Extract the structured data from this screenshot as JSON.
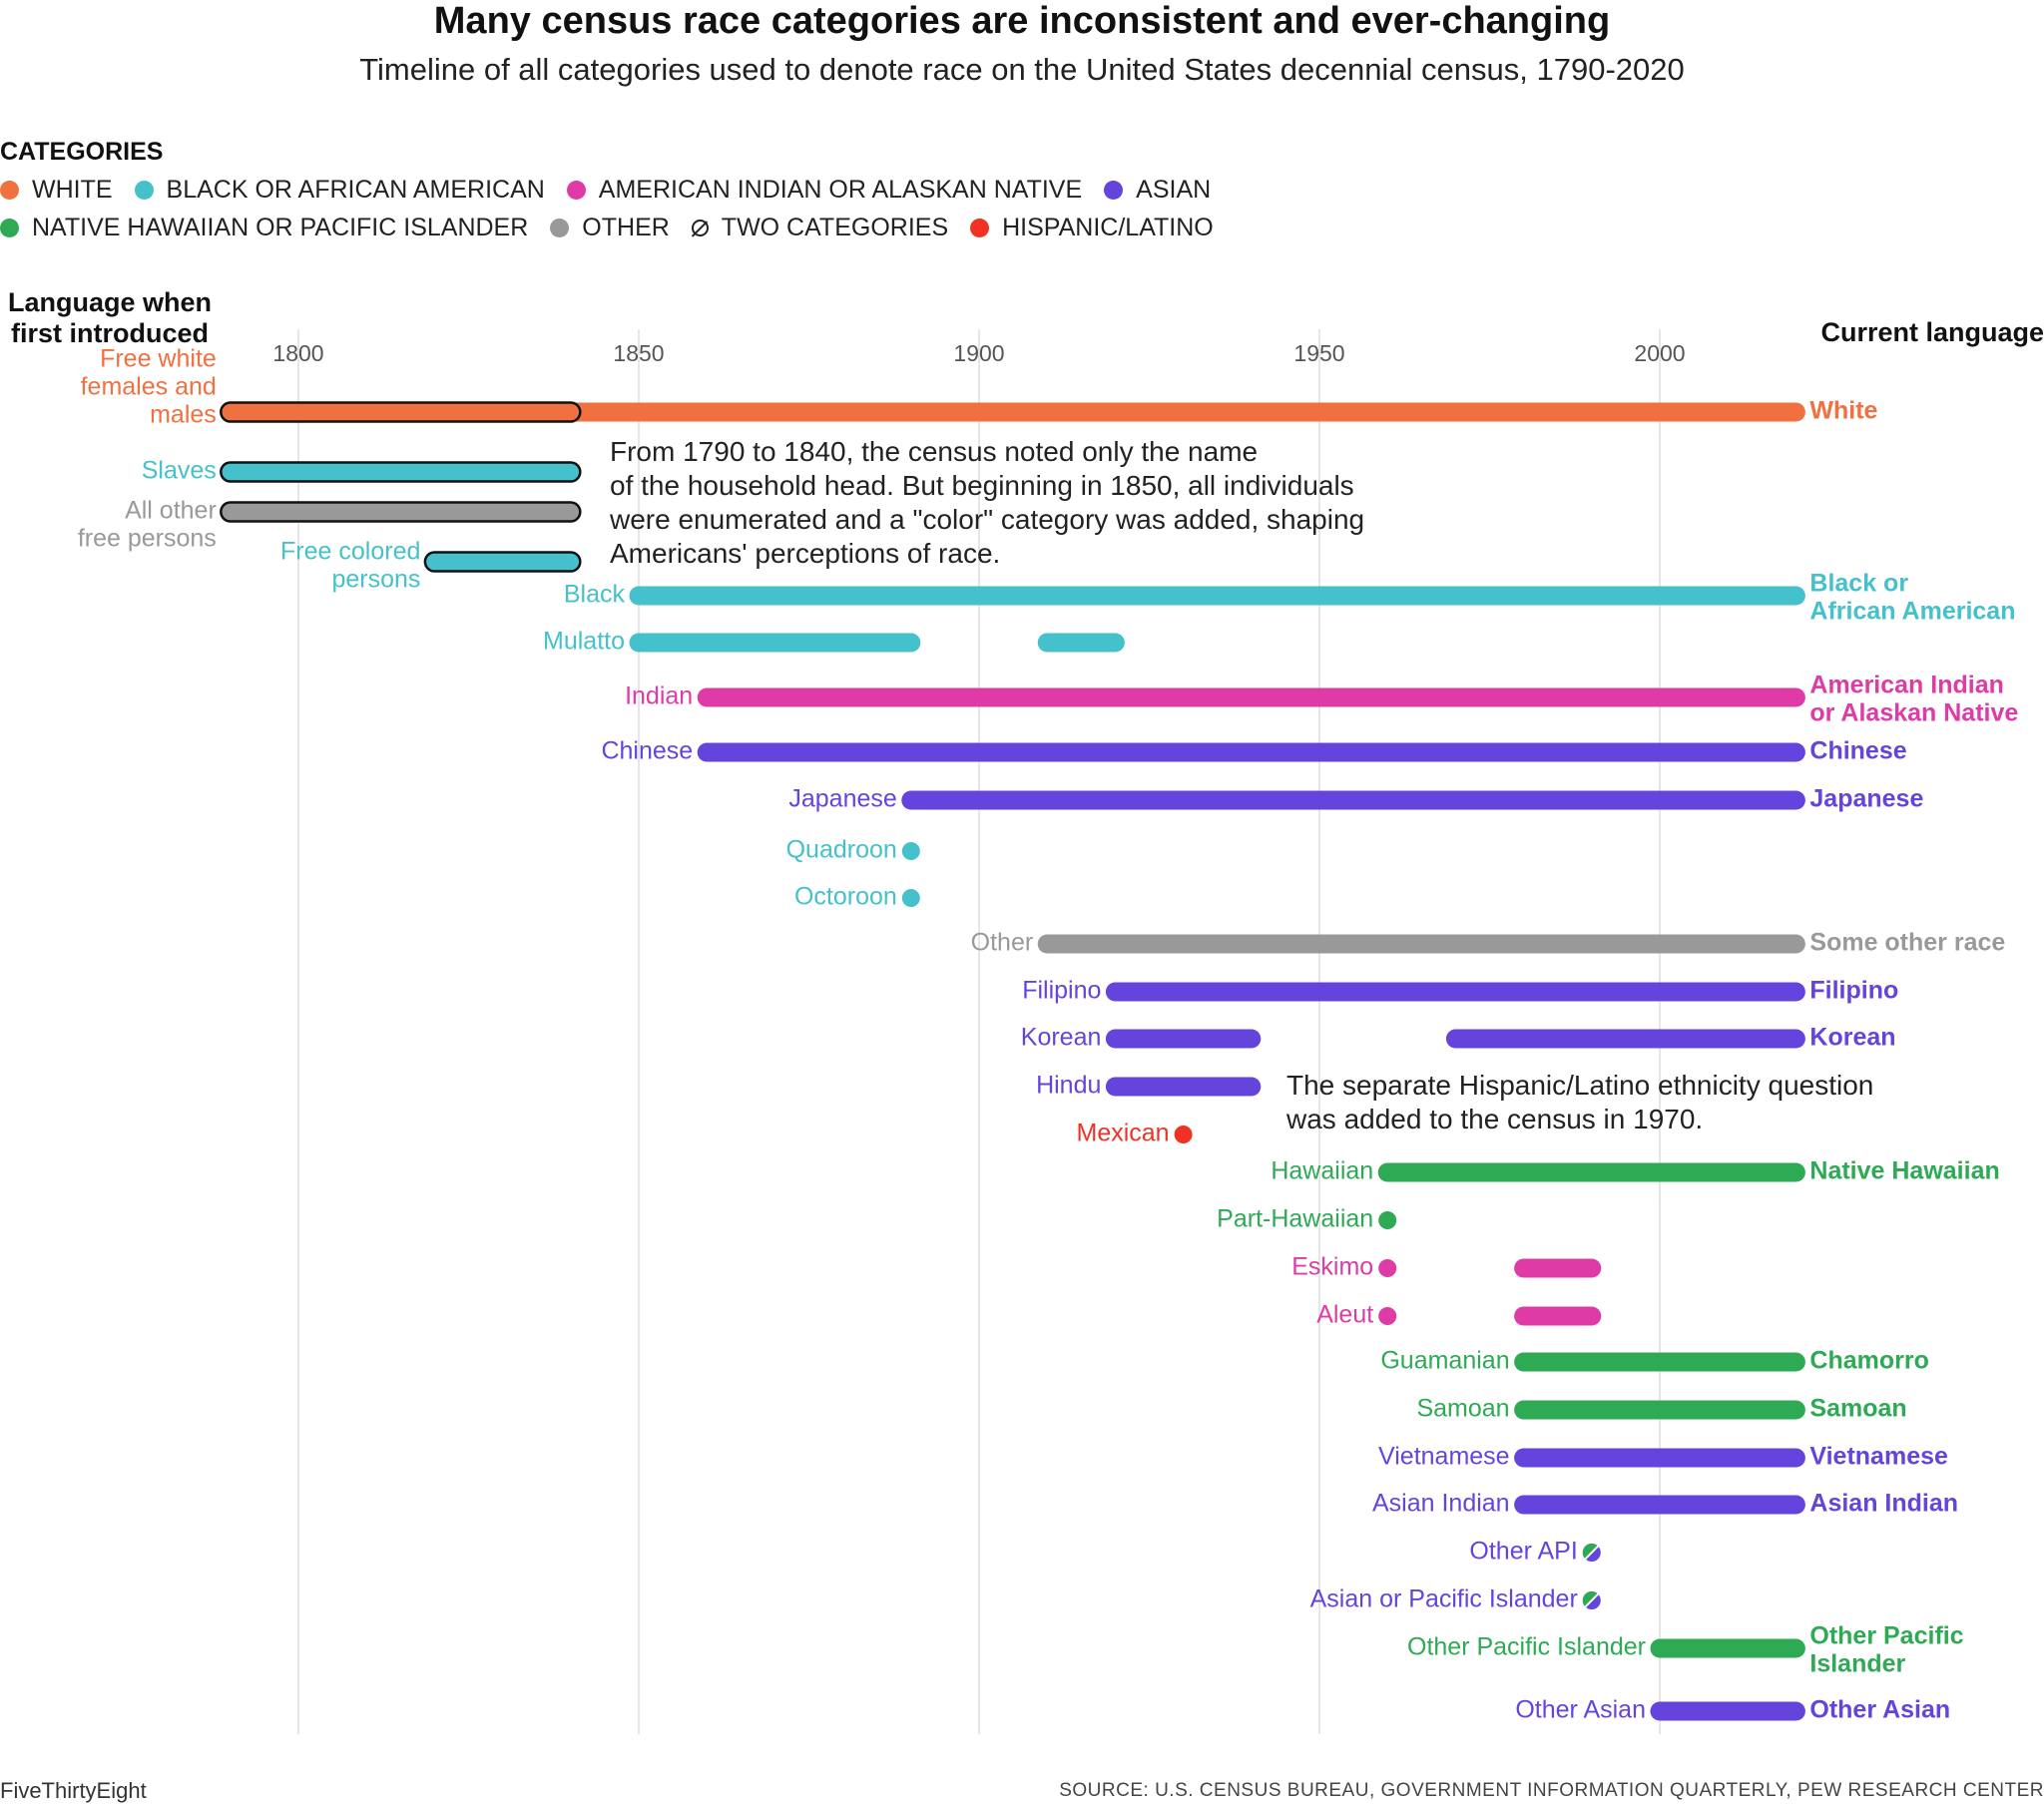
{
  "header": {
    "title": "Many census race categories are inconsistent and ever-changing",
    "subtitle": "Timeline of all categories used to denote race on the United States decennial census, 1790-2020",
    "left_column": [
      "Language when",
      "first introduced"
    ],
    "right_column": "Current language"
  },
  "legend": {
    "title": "CATEGORIES",
    "rows": [
      [
        {
          "label": "WHITE",
          "color": "#f07040",
          "kind": "dot"
        },
        {
          "label": "BLACK OR AFRICAN AMERICAN",
          "color": "#45c1cb",
          "kind": "dot"
        },
        {
          "label": "AMERICAN INDIAN OR ALASKAN NATIVE",
          "color": "#de3ba7",
          "kind": "dot"
        },
        {
          "label": "ASIAN",
          "color": "#6444dc",
          "kind": "dot"
        }
      ],
      [
        {
          "label": "NATIVE HAWAIIAN OR PACIFIC ISLANDER",
          "color": "#2eaa55",
          "kind": "dot"
        },
        {
          "label": "OTHER",
          "color": "#999999",
          "kind": "dot"
        },
        {
          "label": "TWO CATEGORIES",
          "color": "#222222",
          "kind": "slash"
        },
        {
          "label": "HISPANIC/LATINO",
          "color": "#f03225",
          "kind": "dot"
        }
      ]
    ]
  },
  "annotations": [
    {
      "lines": [
        "From 1790 to 1840, the census noted only the name",
        "of the household head. But beginning in 1850, all individuals",
        "were enumerated and a \"color\" category was added, shaping",
        "Americans' perceptions of race."
      ]
    },
    {
      "lines": [
        "The separate Hispanic/Latino ethnicity question",
        "was added to the census in 1970."
      ]
    }
  ],
  "chart_data": {
    "type": "timeline",
    "xlim": [
      1780,
      2030
    ],
    "xticks": [
      1800,
      1850,
      1900,
      1950,
      2000
    ],
    "grid": true,
    "colors": {
      "white": "#f07040",
      "black": "#45c1cb",
      "aian": "#de3ba7",
      "asian": "#6444dc",
      "nhpi": "#2eaa55",
      "other": "#999999",
      "hispanic": "#f03225"
    },
    "rows": [
      {
        "label": "Free white females and males",
        "category": "white",
        "segments": [
          [
            1790,
            2020
          ]
        ],
        "outlined_until": 1840,
        "current": "White"
      },
      {
        "label": "Slaves",
        "category": "black",
        "segments": [
          [
            1790,
            1840
          ]
        ],
        "outlined": true,
        "current": ""
      },
      {
        "label": "All other free persons",
        "category": "other",
        "segments": [
          [
            1790,
            1840
          ]
        ],
        "outlined": true,
        "current": ""
      },
      {
        "label": "Free colored persons",
        "category": "black",
        "segments": [
          [
            1820,
            1840
          ]
        ],
        "outlined": true,
        "current": ""
      },
      {
        "label": "Black",
        "category": "black",
        "segments": [
          [
            1850,
            2020
          ]
        ],
        "current": "Black or African American"
      },
      {
        "label": "Mulatto",
        "category": "black",
        "segments": [
          [
            1850,
            1890
          ],
          [
            1910,
            1920
          ]
        ],
        "current": ""
      },
      {
        "label": "Indian",
        "category": "aian",
        "segments": [
          [
            1860,
            2020
          ]
        ],
        "current": "American Indian or Alaskan Native"
      },
      {
        "label": "Chinese",
        "category": "asian",
        "segments": [
          [
            1860,
            2020
          ]
        ],
        "current": "Chinese"
      },
      {
        "label": "Japanese",
        "category": "asian",
        "segments": [
          [
            1890,
            2020
          ]
        ],
        "current": "Japanese"
      },
      {
        "label": "Quadroon",
        "category": "black",
        "segments": [
          [
            1890,
            1890
          ]
        ],
        "current": ""
      },
      {
        "label": "Octoroon",
        "category": "black",
        "segments": [
          [
            1890,
            1890
          ]
        ],
        "current": ""
      },
      {
        "label": "Other",
        "category": "other",
        "segments": [
          [
            1910,
            2020
          ]
        ],
        "current": "Some other race"
      },
      {
        "label": "Filipino",
        "category": "asian",
        "segments": [
          [
            1920,
            2020
          ]
        ],
        "current": "Filipino"
      },
      {
        "label": "Korean",
        "category": "asian",
        "segments": [
          [
            1920,
            1940
          ],
          [
            1970,
            2020
          ]
        ],
        "current": "Korean"
      },
      {
        "label": "Hindu",
        "category": "asian",
        "segments": [
          [
            1920,
            1940
          ]
        ],
        "current": ""
      },
      {
        "label": "Mexican",
        "category": "hispanic",
        "segments": [
          [
            1930,
            1930
          ]
        ],
        "current": ""
      },
      {
        "label": "Hawaiian",
        "category": "nhpi",
        "segments": [
          [
            1960,
            2020
          ]
        ],
        "current": "Native Hawaiian"
      },
      {
        "label": "Part-Hawaiian",
        "category": "nhpi",
        "segments": [
          [
            1960,
            1960
          ]
        ],
        "current": ""
      },
      {
        "label": "Eskimo",
        "category": "aian",
        "segments": [
          [
            1960,
            1960
          ],
          [
            1980,
            1990
          ]
        ],
        "current": ""
      },
      {
        "label": "Aleut",
        "category": "aian",
        "segments": [
          [
            1960,
            1960
          ],
          [
            1980,
            1990
          ]
        ],
        "current": ""
      },
      {
        "label": "Guamanian",
        "category": "nhpi",
        "segments": [
          [
            1980,
            2020
          ]
        ],
        "current": "Chamorro"
      },
      {
        "label": "Samoan",
        "category": "nhpi",
        "segments": [
          [
            1980,
            2020
          ]
        ],
        "current": "Samoan"
      },
      {
        "label": "Vietnamese",
        "category": "asian",
        "segments": [
          [
            1980,
            2020
          ]
        ],
        "current": "Vietnamese"
      },
      {
        "label": "Asian Indian",
        "category": "asian",
        "segments": [
          [
            1980,
            2020
          ]
        ],
        "current": "Asian Indian"
      },
      {
        "label": "Other API",
        "category": "asian",
        "segments": [
          [
            1990,
            1990
          ]
        ],
        "two_categories": "nhpi",
        "current": ""
      },
      {
        "label": "Asian or Pacific Islander",
        "category": "asian",
        "segments": [
          [
            1990,
            1990
          ]
        ],
        "two_categories": "nhpi",
        "current": ""
      },
      {
        "label": "Other Pacific Islander",
        "category": "nhpi",
        "segments": [
          [
            2000,
            2020
          ]
        ],
        "current": "Other Pacific Islander"
      },
      {
        "label": "Other Asian",
        "category": "asian",
        "segments": [
          [
            2000,
            2020
          ]
        ],
        "current": "Other Asian"
      }
    ]
  },
  "footer": {
    "brand": "FiveThirtyEight",
    "source": "SOURCE: U.S. CENSUS BUREAU, GOVERNMENT INFORMATION QUARTERLY, PEW RESEARCH CENTER"
  }
}
